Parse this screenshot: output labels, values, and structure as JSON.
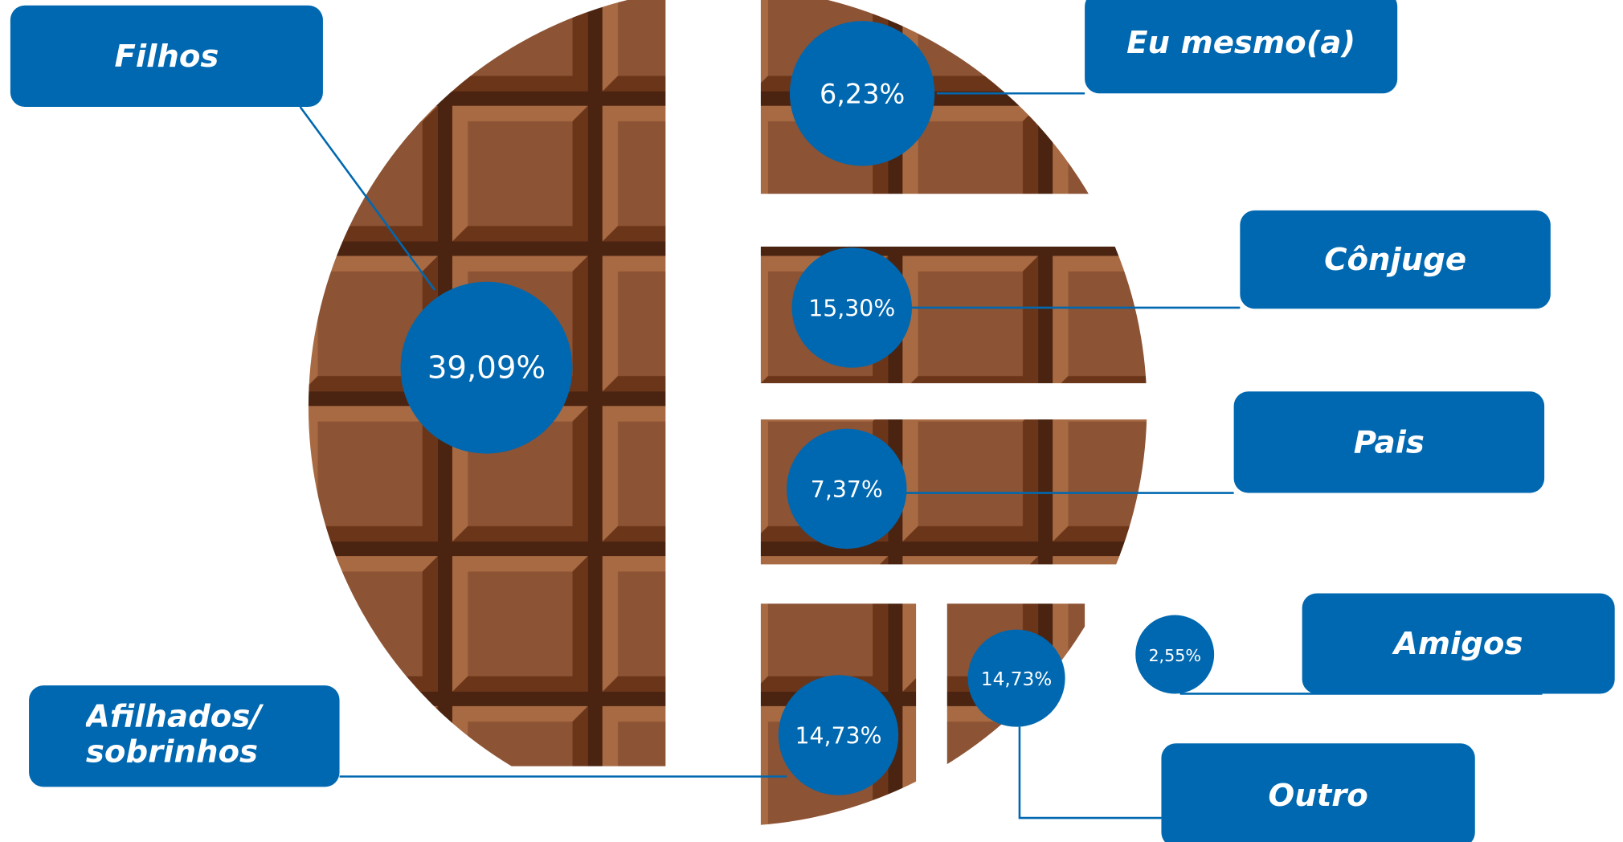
{
  "chart_data": {
    "type": "pie",
    "categories": [
      "Filhos",
      "Eu mesmo(a)",
      "Cônjuge",
      "Pais",
      "Amigos",
      "Outro",
      "Afilhados/ sobrinhos"
    ],
    "values": [
      39.09,
      6.23,
      15.3,
      7.37,
      2.55,
      14.73,
      14.73
    ],
    "value_labels": [
      "39,09%",
      "6,23%",
      "15,30%",
      "7,37%",
      "2,55%",
      "14,73%",
      "14,73%"
    ],
    "color": "#0068b0"
  }
}
